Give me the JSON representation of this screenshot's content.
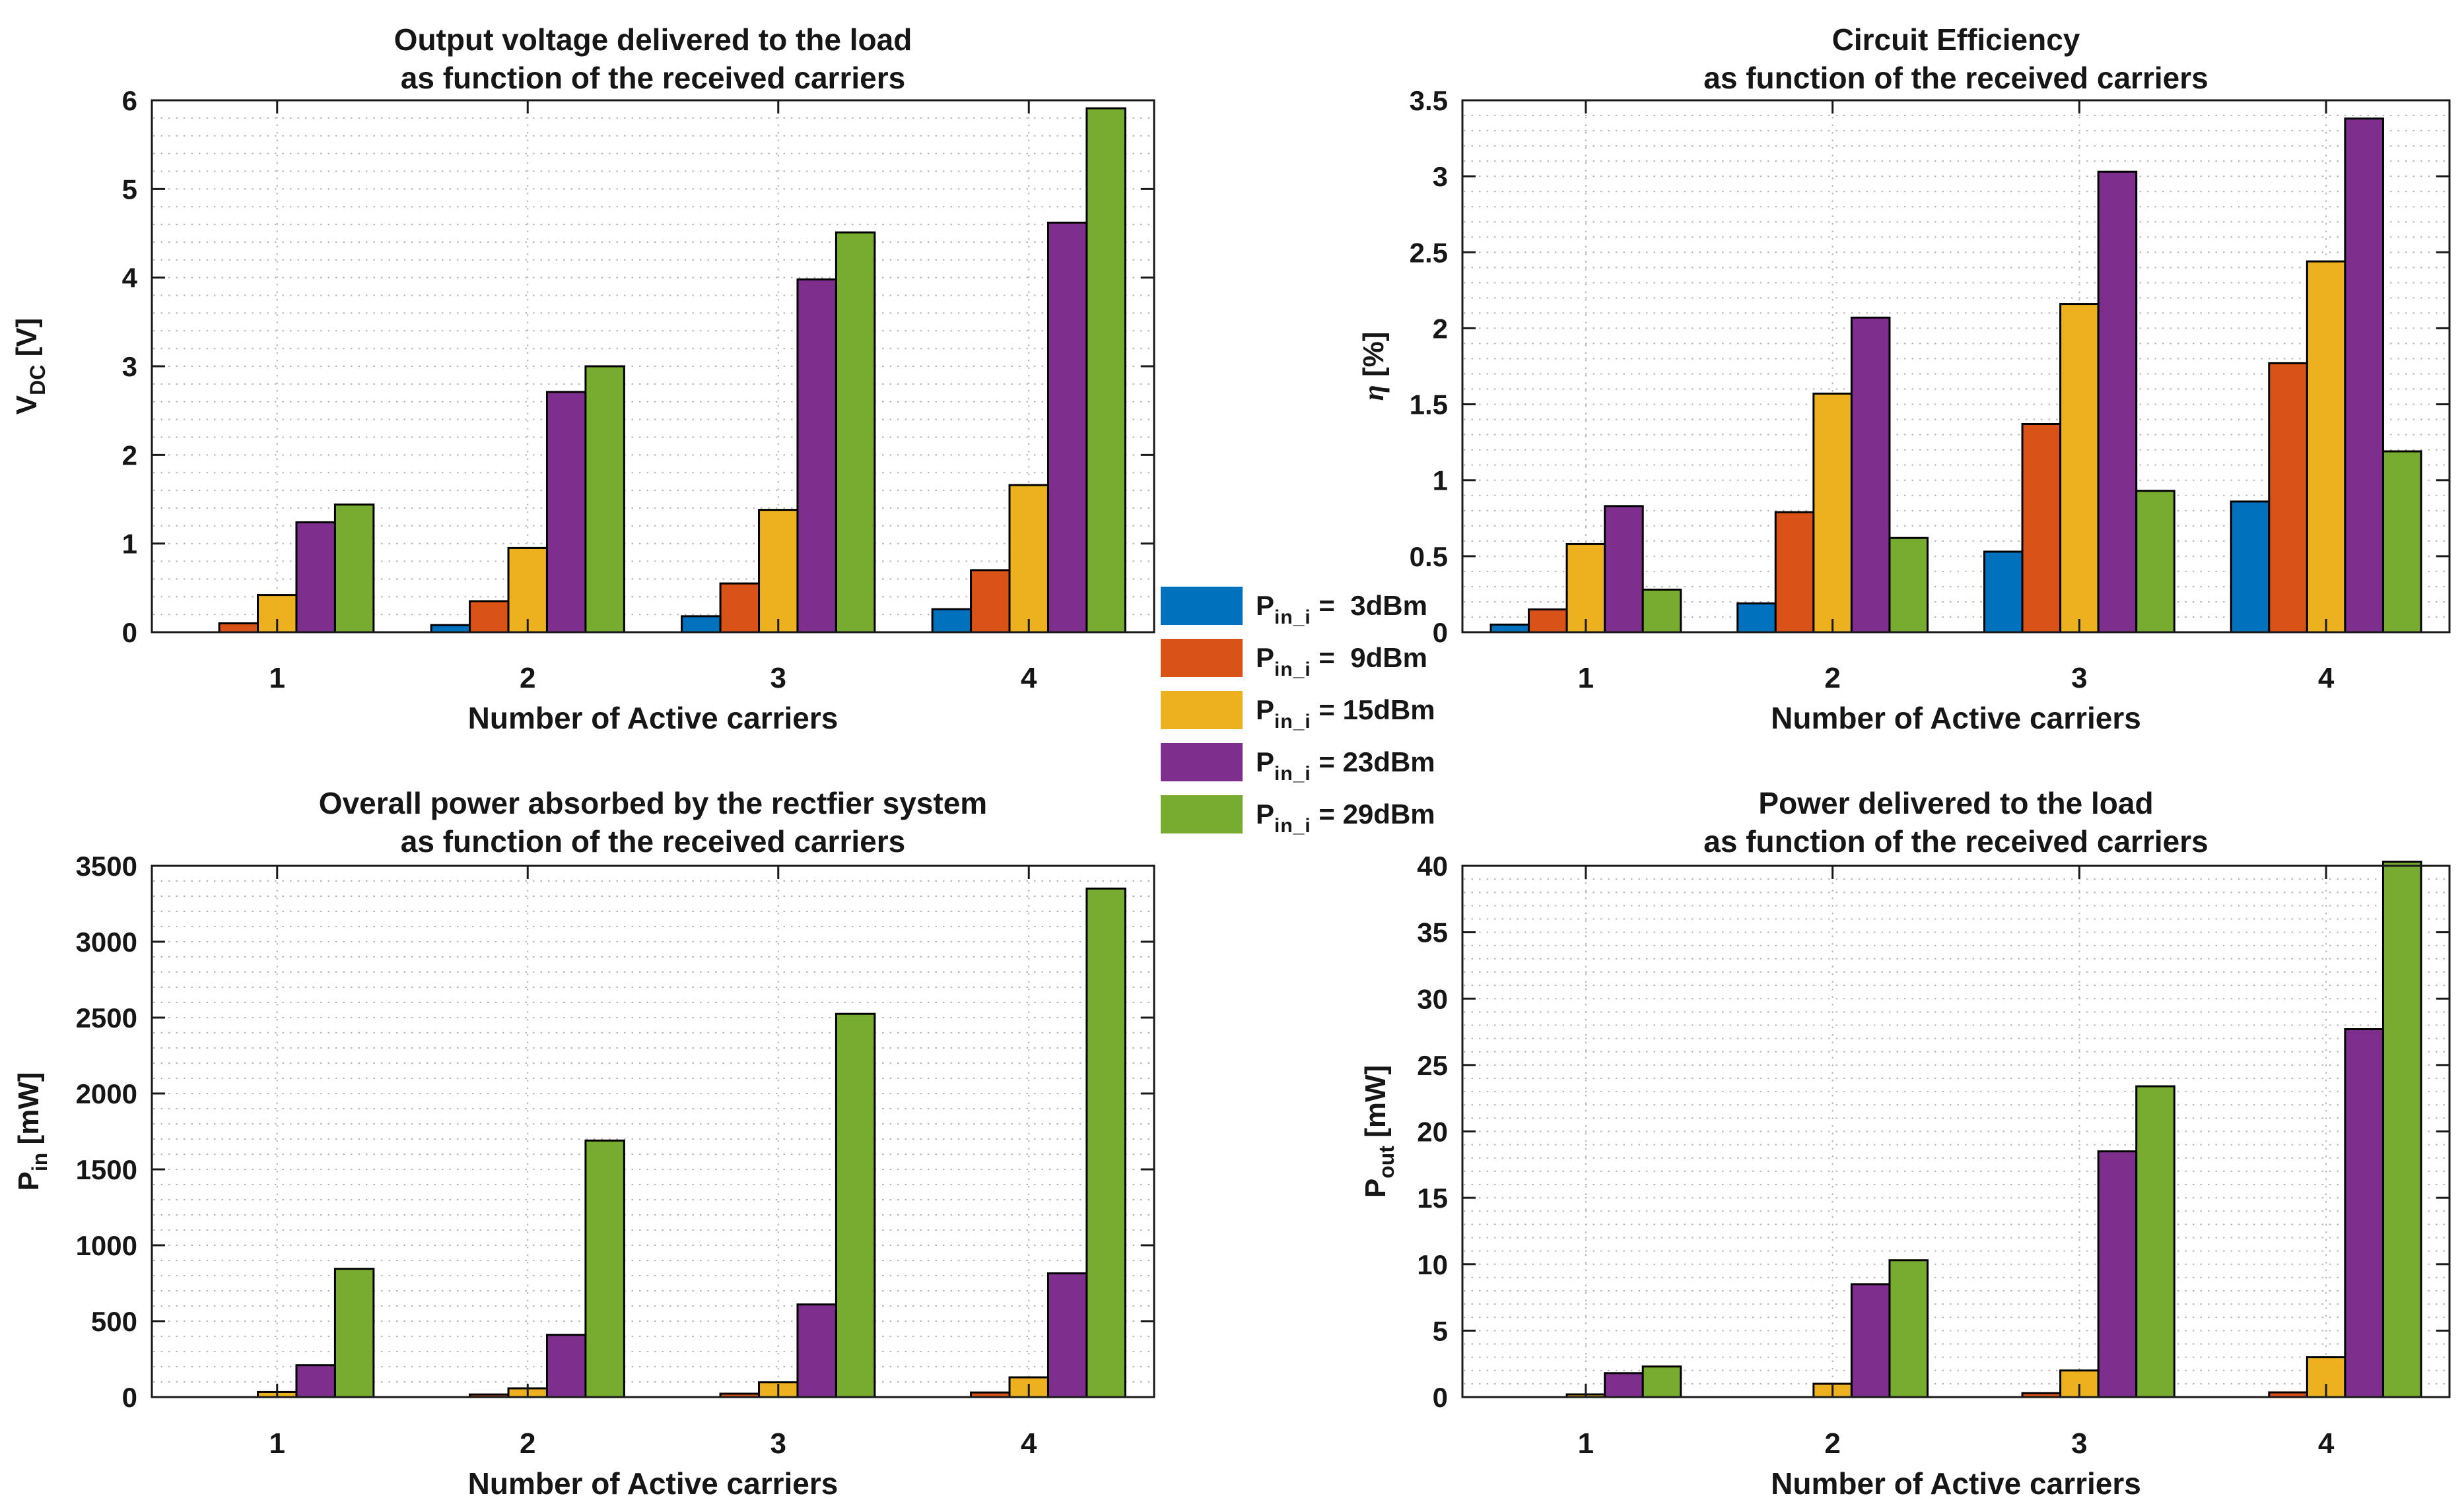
{
  "figure": {
    "background": "#ffffff",
    "text_color": "#161616",
    "axis_color": "#1a1a1a",
    "grid_color": "#b4b4b4"
  },
  "legend": {
    "position": "figure-center",
    "entries": [
      {
        "main": "P",
        "sub": "in_i",
        "eq_value": " =  3dBm",
        "value": "3dBm",
        "color": "#0072BD"
      },
      {
        "main": "P",
        "sub": "in_i",
        "eq_value": " =  9dBm",
        "value": "9dBm",
        "color": "#D95319"
      },
      {
        "main": "P",
        "sub": "in_i",
        "eq_value": " = 15dBm",
        "value": "15dBm",
        "color": "#EDB120"
      },
      {
        "main": "P",
        "sub": "in_i",
        "eq_value": " = 23dBm",
        "value": "23dBm",
        "color": "#7E2F8E"
      },
      {
        "main": "P",
        "sub": "in_i",
        "eq_value": " = 29dBm",
        "value": "29dBm",
        "color": "#77AC30"
      }
    ]
  },
  "chart_data": [
    {
      "id": "tl",
      "type": "bar",
      "title": [
        "Output voltage delivered to the load",
        "as function of the received carriers"
      ],
      "xlabel": "Number of Active carriers",
      "ylabel": {
        "main": "V",
        "sub": "DC",
        "unit": " [V]",
        "italic": false
      },
      "categories": [
        "1",
        "2",
        "3",
        "4"
      ],
      "ylim": [
        0,
        6
      ],
      "ymajor": 1,
      "yminor": 0.2,
      "ytick_labels": [
        "0",
        "1",
        "2",
        "3",
        "4",
        "5",
        "6"
      ],
      "grid": true,
      "series": [
        {
          "name": "P_in_i = 3dBm",
          "color": "#0072BD",
          "values": [
            0.01,
            0.08,
            0.18,
            0.26
          ]
        },
        {
          "name": "P_in_i = 9dBm",
          "color": "#D95319",
          "values": [
            0.1,
            0.35,
            0.55,
            0.7
          ]
        },
        {
          "name": "P_in_i = 15dBm",
          "color": "#EDB120",
          "values": [
            0.42,
            0.95,
            1.38,
            1.66
          ]
        },
        {
          "name": "P_in_i = 23dBm",
          "color": "#7E2F8E",
          "values": [
            1.24,
            2.71,
            3.98,
            4.62
          ]
        },
        {
          "name": "P_in_i = 29dBm",
          "color": "#77AC30",
          "values": [
            1.44,
            3.0,
            4.51,
            5.91
          ]
        }
      ]
    },
    {
      "id": "tr",
      "type": "bar",
      "title": [
        "Circuit Efficiency",
        "as function of the received carriers"
      ],
      "xlabel": "Number of Active carriers",
      "ylabel": {
        "main": "η",
        "sub": "",
        "unit": " [%]",
        "italic": true
      },
      "categories": [
        "1",
        "2",
        "3",
        "4"
      ],
      "ylim": [
        0,
        3.5
      ],
      "ymajor": 0.5,
      "yminor": 0.1,
      "ytick_labels": [
        "0",
        "0.5",
        "1",
        "1.5",
        "2",
        "2.5",
        "3",
        "3.5"
      ],
      "grid": true,
      "series": [
        {
          "name": "P_in_i = 3dBm",
          "color": "#0072BD",
          "values": [
            0.05,
            0.19,
            0.53,
            0.86
          ]
        },
        {
          "name": "P_in_i = 9dBm",
          "color": "#D95319",
          "values": [
            0.15,
            0.79,
            1.37,
            1.77
          ]
        },
        {
          "name": "P_in_i = 15dBm",
          "color": "#EDB120",
          "values": [
            0.58,
            1.57,
            2.16,
            2.44
          ]
        },
        {
          "name": "P_in_i = 23dBm",
          "color": "#7E2F8E",
          "values": [
            0.83,
            2.07,
            3.03,
            3.38
          ]
        },
        {
          "name": "P_in_i = 29dBm",
          "color": "#77AC30",
          "values": [
            0.28,
            0.62,
            0.93,
            1.19
          ]
        }
      ]
    },
    {
      "id": "bl",
      "type": "bar",
      "title": [
        "Overall power absorbed by the rectfier system",
        "as function of the received carriers"
      ],
      "xlabel": "Number of Active carriers",
      "ylabel": {
        "main": "P",
        "sub": "in",
        "unit": " [mW]",
        "italic": false
      },
      "categories": [
        "1",
        "2",
        "3",
        "4"
      ],
      "ylim": [
        0,
        3500
      ],
      "ymajor": 500,
      "yminor": 100,
      "ytick_labels": [
        "0",
        "500",
        "1000",
        "1500",
        "2000",
        "2500",
        "3000",
        "3500"
      ],
      "grid": true,
      "series": [
        {
          "name": "P_in_i = 3dBm",
          "color": "#0072BD",
          "values": [
            2,
            4,
            6,
            8
          ]
        },
        {
          "name": "P_in_i = 9dBm",
          "color": "#D95319",
          "values": [
            8,
            17,
            22,
            30
          ]
        },
        {
          "name": "P_in_i = 15dBm",
          "color": "#EDB120",
          "values": [
            33,
            57,
            97,
            130
          ]
        },
        {
          "name": "P_in_i = 23dBm",
          "color": "#7E2F8E",
          "values": [
            210,
            410,
            610,
            815
          ]
        },
        {
          "name": "P_in_i = 29dBm",
          "color": "#77AC30",
          "values": [
            845,
            1690,
            2525,
            3350
          ]
        }
      ]
    },
    {
      "id": "br",
      "type": "bar",
      "title": [
        "Power delivered to the load",
        "as function of the received carriers"
      ],
      "xlabel": "Number of Active carriers",
      "ylabel": {
        "main": "P",
        "sub": "out",
        "unit": " [mW]",
        "italic": false
      },
      "categories": [
        "1",
        "2",
        "3",
        "4"
      ],
      "ylim": [
        0,
        40
      ],
      "ymajor": 5,
      "yminor": 1,
      "ytick_labels": [
        "0",
        "5",
        "10",
        "15",
        "20",
        "25",
        "30",
        "35",
        "40"
      ],
      "grid": true,
      "clipped_top_series": "P_in_i = 29dBm",
      "series": [
        {
          "name": "P_in_i = 3dBm",
          "color": "#0072BD",
          "values": [
            0.01,
            0.03,
            0.06,
            0.1
          ]
        },
        {
          "name": "P_in_i = 9dBm",
          "color": "#D95319",
          "values": [
            0.06,
            0.12,
            0.3,
            0.35
          ]
        },
        {
          "name": "P_in_i = 15dBm",
          "color": "#EDB120",
          "values": [
            0.2,
            1.0,
            2.0,
            3.0
          ]
        },
        {
          "name": "P_in_i = 23dBm",
          "color": "#7E2F8E",
          "values": [
            1.8,
            8.5,
            18.5,
            27.7
          ]
        },
        {
          "name": "P_in_i = 29dBm",
          "color": "#77AC30",
          "values": [
            2.3,
            10.3,
            23.4,
            40.3
          ]
        }
      ]
    }
  ]
}
